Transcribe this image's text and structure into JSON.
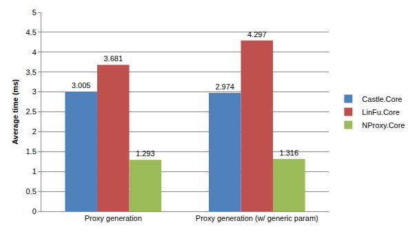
{
  "chart_data": {
    "type": "bar",
    "y_label": "Average time (ms)",
    "categories": [
      "Proxy generation",
      "Proxy generation (w/ generic param)"
    ],
    "series": [
      {
        "name": "Castle.Core",
        "color": "#4f81bd",
        "values": [
          3.005,
          2.974
        ]
      },
      {
        "name": "LinFu.Core",
        "color": "#c0504d",
        "values": [
          3.681,
          4.297
        ]
      },
      {
        "name": "NProxy.Core",
        "color": "#9bbb59",
        "values": [
          1.293,
          1.316
        ]
      }
    ],
    "ylim": [
      0,
      5
    ],
    "yticks": [
      0,
      0.5,
      1,
      1.5,
      2,
      2.5,
      3,
      3.5,
      4,
      4.5,
      5
    ],
    "grid": true,
    "legend": "right",
    "data_labels": true
  }
}
